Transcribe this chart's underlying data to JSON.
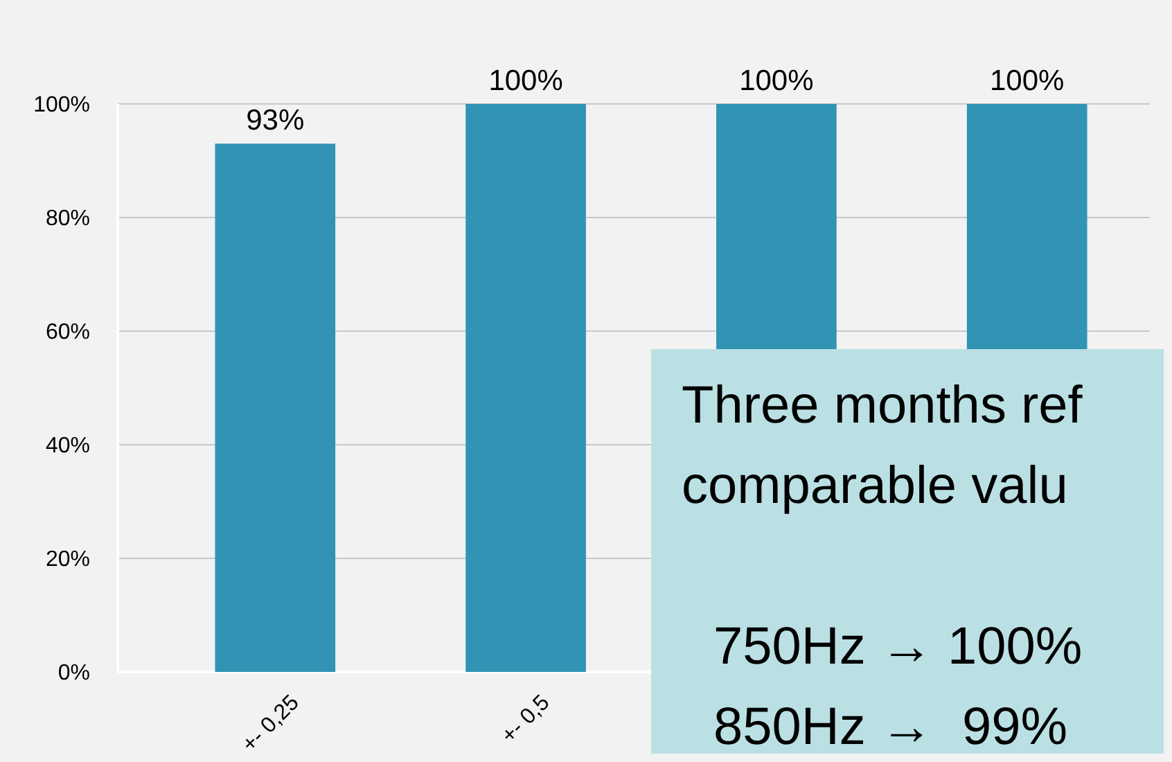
{
  "chart_data": {
    "type": "bar",
    "categories": [
      "+- 0,25",
      "+- 0,5",
      null,
      null
    ],
    "values": [
      93,
      100,
      100,
      100
    ],
    "color": "#3194b5",
    "value_labels": [
      "93%",
      "100%",
      "100%",
      "100%"
    ],
    "ylim": [
      0,
      100
    ],
    "yticks": [
      {
        "value": 0,
        "label": "0%"
      },
      {
        "value": 20,
        "label": "20%"
      },
      {
        "value": 40,
        "label": "40%"
      },
      {
        "value": 60,
        "label": "60%"
      },
      {
        "value": 80,
        "label": "80%"
      },
      {
        "value": 100,
        "label": "100%"
      }
    ],
    "grid": "y",
    "annotations": [
      "Three months ref",
      "comparable valu",
      "750Hz → 100%",
      "850Hz →  99%"
    ]
  }
}
